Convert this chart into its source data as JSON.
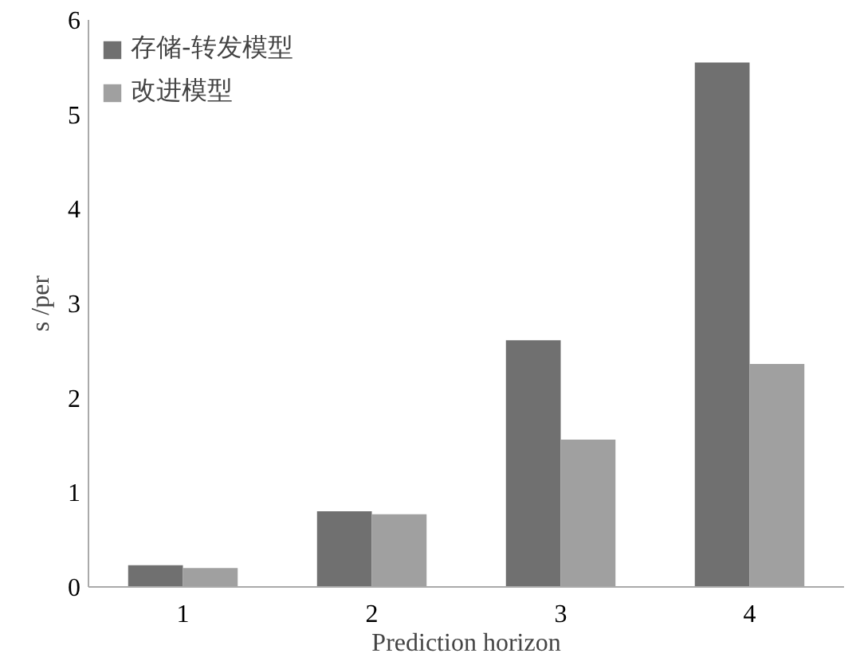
{
  "chart_data": {
    "type": "bar",
    "xlabel": "Prediction horizon",
    "ylabel": "s /per",
    "categories": [
      "1",
      "2",
      "3",
      "4"
    ],
    "series": [
      {
        "name": "存储-转发模型",
        "color": "#707070",
        "values": [
          0.23,
          0.8,
          2.61,
          5.55
        ]
      },
      {
        "name": "改进模型",
        "color": "#a0a0a0",
        "values": [
          0.2,
          0.77,
          1.56,
          2.36
        ]
      }
    ],
    "ylim": [
      0,
      6
    ],
    "yticks": [
      0,
      1,
      2,
      3,
      4,
      5,
      6
    ],
    "grid": false,
    "legend": "top left"
  }
}
